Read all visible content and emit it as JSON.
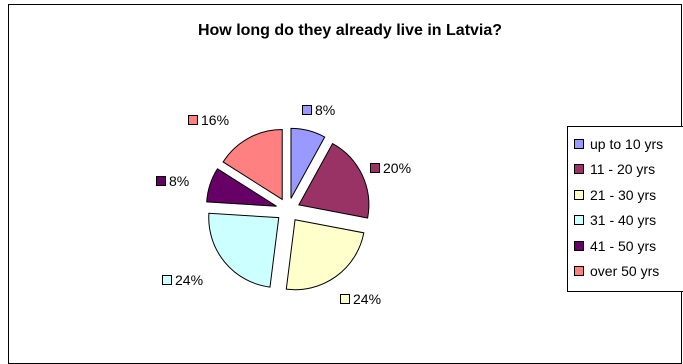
{
  "chart_data": {
    "type": "pie",
    "title": "How long do they already live in Latvia?",
    "categories": [
      "up to 10 yrs",
      "11 - 20 yrs",
      "21 - 30 yrs",
      "31 - 40 yrs",
      "41 - 50 yrs",
      "over 50 yrs"
    ],
    "values": [
      8,
      20,
      24,
      24,
      8,
      16
    ],
    "data_labels": [
      "8%",
      "20%",
      "24%",
      "24%",
      "8%",
      "16%"
    ],
    "colors": [
      "#9999ff",
      "#993366",
      "#ffffcc",
      "#ccffff",
      "#660066",
      "#ff8080"
    ],
    "exploded": true,
    "legend_position": "right"
  }
}
